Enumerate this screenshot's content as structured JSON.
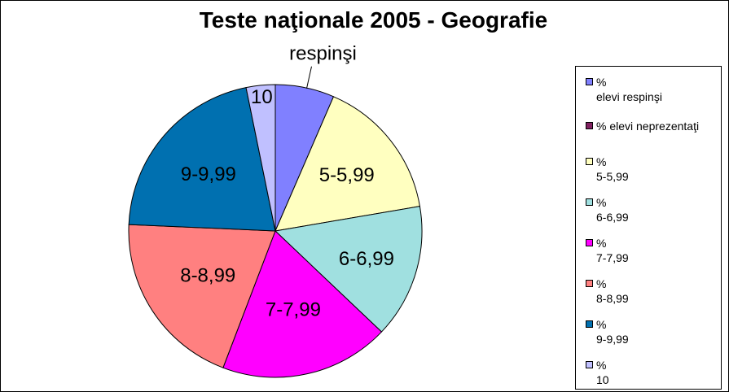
{
  "chart_data": {
    "type": "pie",
    "title": "Teste naţionale 2005 - Geografie",
    "start_angle_deg": 0,
    "direction": "clockwise",
    "slices": [
      {
        "label": "respinşi",
        "legend": [
          "%",
          "elevi respinşi"
        ],
        "value": 6.5,
        "color": "#8080FF"
      },
      {
        "label": "",
        "legend": [
          "% elevi neprezentaţi"
        ],
        "value": 0,
        "color": "#802060"
      },
      {
        "label": "5-5,99",
        "legend": [
          "%",
          "5-5,99"
        ],
        "value": 15.8,
        "color": "#FFFFC0"
      },
      {
        "label": "6-6,99",
        "legend": [
          "%",
          "6-6,99"
        ],
        "value": 14.8,
        "color": "#A0E0E0"
      },
      {
        "label": "7-7,99",
        "legend": [
          "%",
          "7-7,99"
        ],
        "value": 18.7,
        "color": "#FF00FF"
      },
      {
        "label": "8-8,99",
        "legend": [
          "%",
          "8-8,99"
        ],
        "value": 19.9,
        "color": "#FF8080"
      },
      {
        "label": "9-9,99",
        "legend": [
          "%",
          "9-9,99"
        ],
        "value": 21.1,
        "color": "#0070B0"
      },
      {
        "label": "10",
        "legend": [
          "%",
          "10"
        ],
        "value": 3.2,
        "color": "#C0C0FF"
      }
    ],
    "legend_position": "right"
  }
}
